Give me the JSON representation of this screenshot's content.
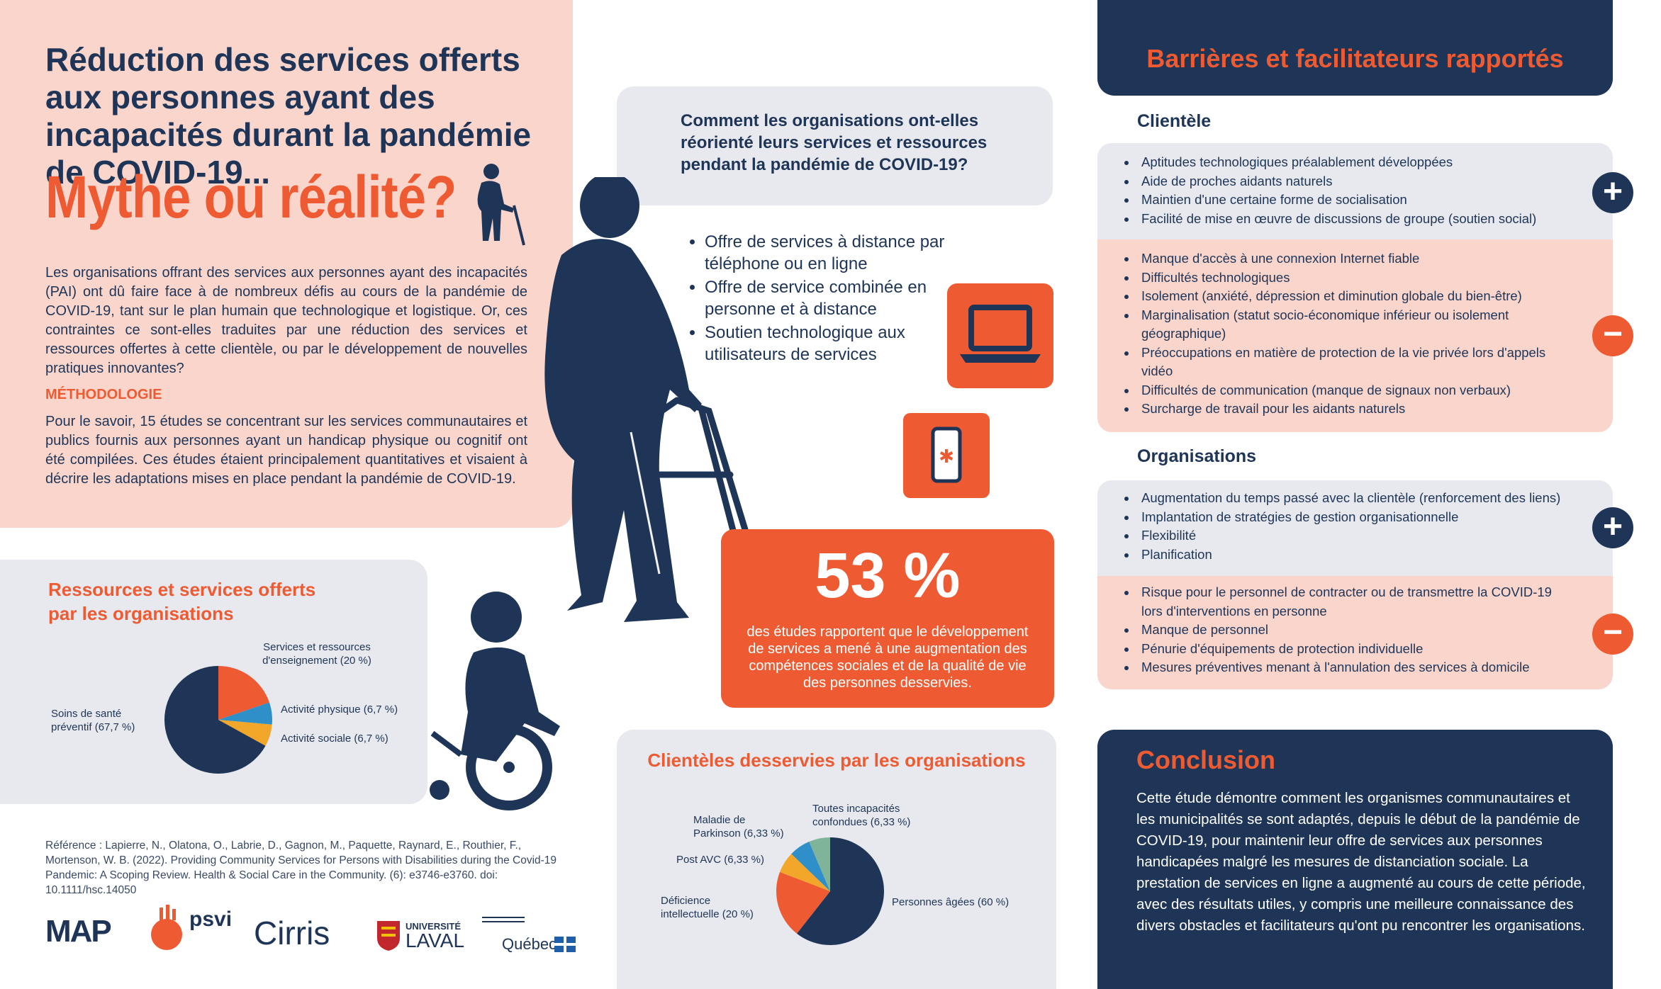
{
  "intro": {
    "title": "Réduction des services offerts aux personnes ayant des incapacités durant la pandémie de COVID-19...",
    "subtitle": "Mythe ou réalité?",
    "text": "Les organisations offrant des services aux personnes ayant des incapacités (PAI) ont dû faire face à de nombreux défis au cours de la pandémie de COVID-19, tant sur le plan humain que technologique et logistique. Or, ces contraintes ce sont-elles traduites par une réduction des services et ressources offertes à cette clientèle, ou par le développement de nouvelles pratiques innovantes?",
    "method_heading": "MÉTHODOLOGIE",
    "method_text": "Pour le savoir, 15 études se concentrant sur les services communautaires et publics fournis aux personnes ayant un handicap physique ou cognitif ont été compilées. Ces études étaient principalement quantitatives et visaient à décrire les adaptations mises en place pendant la pandémie de COVID-19."
  },
  "resources": {
    "title": "Ressources et services offerts par les organisations"
  },
  "chart_data": [
    {
      "type": "pie",
      "title": "Ressources et services offerts par les organisations",
      "categories": [
        "Soins de santé préventif (67,7 %)",
        "Services et ressources d'enseignement (20 %)",
        "Activité physique (6,7 %)",
        "Activité sociale (6,7 %)"
      ],
      "values": [
        67.7,
        20,
        6.7,
        6.7
      ],
      "colors": [
        "#1f3557",
        "#ee5b33",
        "#2e8fc9",
        "#f2a62a"
      ]
    },
    {
      "type": "pie",
      "title": "Clientèles desservies par les organisations",
      "categories": [
        "Personnes âgées (60 %)",
        "Déficience intellectuelle (20 %)",
        "Post AVC (6,33 %)",
        "Maladie de Parkinson (6,33 %)",
        "Toutes incapacités confondues (6,33 %)"
      ],
      "values": [
        60,
        20,
        6.33,
        6.33,
        6.33
      ],
      "colors": [
        "#1f3557",
        "#ee5b33",
        "#f2a62a",
        "#2e8fc9",
        "#7fb39a"
      ]
    }
  ],
  "pie1_labels": {
    "teaching": [
      "Services et ressources",
      "d'enseignement (20 %)"
    ],
    "health": [
      "Soins de santé",
      "préventif (67,7 %)"
    ],
    "physical": "Activité physique (6,7 %)",
    "social": "Activité sociale (6,7 %)"
  },
  "reference": "Référence : Lapierre, N., Olatona, O., Labrie, D., Gagnon, M., Paquette, Raynard, E., Routhier, F., Mortenson, W. B. (2022). Providing Community Services for Persons with Disabilities during the Covid-19 Pandemic: A Scoping Review. Health & Social Care in the Community. (6): e3746-e3760. doi: 10.1111/hsc.14050",
  "logos": {
    "map": "MAP",
    "psvi": "psvi",
    "cirris": "Cirris",
    "laval": [
      "UNIVERSITÉ",
      "LAVAL"
    ],
    "quebec": "Québec"
  },
  "question": {
    "text": "Comment les organisations ont-elles réorienté leurs services et ressources pendant la pandémie de COVID-19?",
    "items": [
      "Offre de services à distance par téléphone ou en ligne",
      "Offre de service combinée en personne et à distance",
      "Soutien technologique aux utilisateurs de services"
    ]
  },
  "stat": {
    "number": "53 %",
    "text": "des études rapportent que le développement de services a mené à une augmentation des compétences sociales et de la qualité de vie des personnes desservies."
  },
  "clienteles": {
    "title": "Clientèles desservies par les organisations",
    "labels": {
      "all": [
        "Toutes incapacités",
        "confondues (6,33 %)"
      ],
      "parkinson": [
        "Maladie de",
        "Parkinson (6,33 %)"
      ],
      "avc": "Post AVC (6,33 %)",
      "di": [
        "Déficience",
        "intellectuelle (20 %)"
      ],
      "elderly": "Personnes âgées (60 %)"
    }
  },
  "barriers": {
    "title": "Barrières et facilitateurs rapportés",
    "client_heading": "Clientèle",
    "client_plus": [
      "Aptitudes technologiques préalablement développées",
      "Aide de proches aidants naturels",
      "Maintien d'une certaine forme de socialisation",
      "Facilité de mise en œuvre de discussions de groupe (soutien social)"
    ],
    "client_minus": [
      "Manque d'accès à une connexion Internet fiable",
      "Difficultés technologiques",
      "Isolement (anxiété, dépression et diminution globale du bien-être)",
      "Marginalisation (statut socio-économique inférieur ou isolement géographique)",
      "Préoccupations en matière de protection de la vie privée lors d'appels vidéo",
      "Difficultés de communication (manque de signaux non verbaux)",
      "Surcharge de travail pour les aidants naturels"
    ],
    "org_heading": "Organisations",
    "org_plus": [
      "Augmentation du temps passé avec la clientèle (renforcement des liens)",
      "Implantation de stratégies de gestion organisationnelle",
      "Flexibilité",
      "Planification"
    ],
    "org_minus": [
      "Risque pour le personnel de contracter ou de transmettre la COVID-19 lors d'interventions en personne",
      "Manque de personnel",
      "Pénurie d'équipements de protection individuelle",
      "Mesures préventives menant à l'annulation des services à domicile"
    ],
    "plus_symbol": "+",
    "minus_symbol": "−"
  },
  "conclusion": {
    "title": "Conclusion",
    "text": "Cette étude démontre comment les organismes communautaires et les municipalités se sont adaptés, depuis le début de la pandémie de COVID-19, pour maintenir leur offre de services aux personnes handicapées malgré les mesures de distanciation sociale. La prestation de services en ligne a augmenté au cours de cette période, avec des résultats utiles, y compris une meilleure connaissance des divers obstacles et facilitateurs qu'ont pu rencontrer les organisations."
  }
}
